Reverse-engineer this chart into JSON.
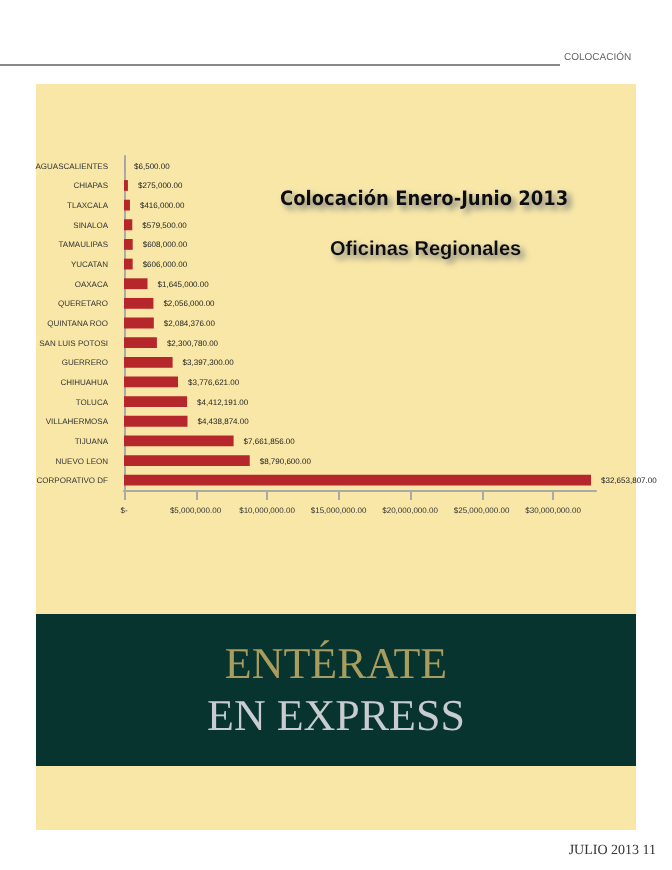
{
  "chart_data": {
    "type": "bar",
    "orientation": "horizontal",
    "title": "Colocación Enero-Junio 2013",
    "subtitle": "Oficinas Regionales",
    "categories": [
      "AGUASCALIENTES",
      "CHIAPAS",
      "TLAXCALA",
      "SINALOA",
      "TAMAULIPAS",
      "YUCATAN",
      "OAXACA",
      "QUERETARO",
      "QUINTANA ROO",
      "SAN LUIS POTOSI",
      "GUERRERO",
      "CHIHUAHUA",
      "TOLUCA",
      "VILLAHERMOSA",
      "TIJUANA",
      "NUEVO LEON",
      "CORPORATIVO DF"
    ],
    "values": [
      6500,
      275000,
      416000,
      579500,
      608000,
      606000,
      1645000,
      2056000,
      2084376,
      2300780,
      3397300,
      3776621,
      4412191,
      4438874,
      7661856,
      8790600,
      32653807
    ],
    "value_labels": [
      "$6,500.00",
      "$275,000.00",
      "$416,000.00",
      "$579,500.00",
      "$608,000.00",
      "$606,000.00",
      "$1,645,000.00",
      "$2,056,000.00",
      "$2,084,376.00",
      "$2,300,780.00",
      "$3,397,300.00",
      "$3,776,621.00",
      "$4,412,191.00",
      "$4,438,874.00",
      "$7,661,856.00",
      "$8,790,600.00",
      "$32,653,807.00"
    ],
    "color": "#b5272a",
    "xlim": [
      0,
      33000000
    ],
    "xticks": [
      {
        "value": 0,
        "label": "$-"
      },
      {
        "value": 5000000,
        "label": "$5,000,000.00"
      },
      {
        "value": 10000000,
        "label": "$10,000,000.00"
      },
      {
        "value": 15000000,
        "label": "$15,000,000.00"
      },
      {
        "value": 20000000,
        "label": "$20,000,000.00"
      },
      {
        "value": 25000000,
        "label": "$25,000,000.00"
      },
      {
        "value": 30000000,
        "label": "$30,000,000.00"
      }
    ],
    "grid": false,
    "annotations": [
      "COLOCACIÓN",
      "ENTÉRATE",
      "EN EXPRESS",
      "JULIO 2013 11"
    ]
  }
}
